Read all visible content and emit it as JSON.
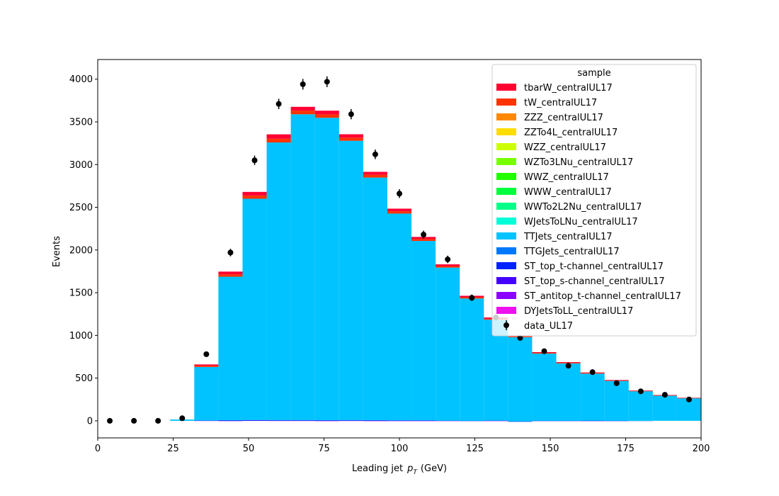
{
  "chart_data": {
    "type": "bar",
    "stacked": true,
    "xlabel": "Leading jet  p_T (GeV)",
    "xlabel_main": "Leading jet",
    "xlabel_symbol": "p",
    "xlabel_sub": "T",
    "xlabel_unit": "(GeV)",
    "ylabel": "Events",
    "xlim": [
      0,
      200
    ],
    "ylim": [
      -200,
      4230
    ],
    "xticks": [
      "0",
      "25",
      "50",
      "75",
      "100",
      "125",
      "150",
      "175",
      "200"
    ],
    "yticks": [
      "0",
      "500",
      "1000",
      "1500",
      "2000",
      "2500",
      "3000",
      "3500",
      "4000"
    ],
    "grid": false,
    "legend_title": "sample",
    "legend_position": "top-right",
    "bin_edges": [
      0,
      8,
      16,
      24,
      32,
      40,
      48,
      56,
      64,
      72,
      80,
      88,
      96,
      104,
      112,
      120,
      128,
      136,
      144,
      152,
      160,
      168,
      176,
      184,
      192,
      200
    ],
    "series": [
      {
        "name": "DYJetsToLL_centralUL17",
        "color": "#ee11ee",
        "values": [
          0,
          0,
          0,
          0,
          2,
          1,
          3,
          2,
          2,
          1,
          2,
          1,
          1,
          1,
          1,
          0,
          1,
          -5,
          0,
          0,
          0,
          0,
          0,
          0,
          0
        ]
      },
      {
        "name": "ST_antitop_t-channel_centralUL17",
        "color": "#8b00ff",
        "values": [
          0,
          0,
          0,
          0,
          1,
          1,
          1,
          1,
          1,
          1,
          1,
          1,
          1,
          1,
          0,
          0,
          1,
          -3,
          0,
          0,
          1,
          0,
          0,
          0,
          0
        ]
      },
      {
        "name": "ST_top_s-channel_centralUL17",
        "color": "#4400ff",
        "values": [
          0,
          0,
          0,
          0,
          0,
          1,
          1,
          1,
          1,
          1,
          1,
          1,
          1,
          1,
          0,
          0,
          0,
          0,
          0,
          0,
          0,
          0,
          0,
          0,
          0
        ]
      },
      {
        "name": "ST_top_t-channel_centralUL17",
        "color": "#0022ff",
        "values": [
          0,
          0,
          0,
          0,
          1,
          2,
          2,
          2,
          2,
          2,
          2,
          2,
          1,
          1,
          1,
          1,
          1,
          1,
          1,
          1,
          1,
          1,
          0,
          0,
          0
        ]
      },
      {
        "name": "TTGJets_centralUL17",
        "color": "#0077ff",
        "values": [
          0,
          0,
          0,
          0,
          1,
          2,
          3,
          3,
          3,
          3,
          3,
          3,
          2,
          2,
          2,
          1,
          1,
          1,
          1,
          1,
          1,
          1,
          1,
          0,
          0
        ]
      },
      {
        "name": "TTJets_centralUL17",
        "color": "#00c3ff",
        "values": [
          0,
          0,
          0,
          15,
          625,
          1680,
          2590,
          3250,
          3580,
          3540,
          3270,
          2840,
          2420,
          2100,
          1790,
          1430,
          1180,
          985,
          785,
          670,
          550,
          465,
          345,
          295,
          265
        ]
      },
      {
        "name": "WJetsToLNu_centralUL17",
        "color": "#00ffd9",
        "values": [
          0,
          0,
          0,
          0,
          0,
          0,
          0,
          0,
          0,
          0,
          0,
          0,
          0,
          0,
          0,
          0,
          0,
          0,
          0,
          0,
          0,
          0,
          0,
          0,
          0
        ]
      },
      {
        "name": "WWTo2L2Nu_centralUL17",
        "color": "#00ff88",
        "values": [
          0,
          0,
          0,
          0,
          0,
          0,
          0,
          0,
          0,
          0,
          0,
          0,
          0,
          0,
          0,
          0,
          0,
          0,
          0,
          0,
          0,
          0,
          0,
          0,
          0
        ]
      },
      {
        "name": "WWW_centralUL17",
        "color": "#00ff3c",
        "values": [
          0,
          0,
          0,
          0,
          0,
          0,
          0,
          0,
          0,
          0,
          0,
          0,
          0,
          0,
          0,
          0,
          0,
          0,
          0,
          0,
          0,
          0,
          0,
          0,
          0
        ]
      },
      {
        "name": "WWZ_centralUL17",
        "color": "#22ff00",
        "values": [
          0,
          0,
          0,
          0,
          0,
          0,
          0,
          0,
          0,
          0,
          0,
          0,
          0,
          0,
          0,
          0,
          0,
          0,
          0,
          0,
          0,
          0,
          0,
          0,
          0
        ]
      },
      {
        "name": "WZTo3LNu_centralUL17",
        "color": "#77ff00",
        "values": [
          0,
          0,
          0,
          0,
          0,
          0,
          0,
          0,
          0,
          0,
          0,
          0,
          0,
          0,
          0,
          0,
          0,
          0,
          0,
          0,
          0,
          0,
          0,
          0,
          0
        ]
      },
      {
        "name": "WZZ_centralUL17",
        "color": "#ccff00",
        "values": [
          0,
          0,
          0,
          0,
          0,
          0,
          0,
          0,
          0,
          0,
          0,
          0,
          0,
          0,
          0,
          0,
          0,
          0,
          0,
          0,
          0,
          0,
          0,
          0,
          0
        ]
      },
      {
        "name": "ZZTo4L_centralUL17",
        "color": "#ffdd00",
        "values": [
          0,
          0,
          0,
          0,
          0,
          0,
          0,
          0,
          0,
          0,
          0,
          0,
          0,
          0,
          0,
          0,
          0,
          0,
          0,
          0,
          0,
          0,
          0,
          0,
          0
        ]
      },
      {
        "name": "ZZZ_centralUL17",
        "color": "#ff8800",
        "values": [
          0,
          0,
          0,
          0,
          0,
          0,
          0,
          0,
          0,
          0,
          0,
          0,
          0,
          0,
          0,
          0,
          0,
          0,
          0,
          0,
          0,
          0,
          0,
          0,
          0
        ]
      },
      {
        "name": "tW_centralUL17",
        "color": "#ff3300",
        "values": [
          0,
          0,
          0,
          0,
          14,
          28,
          38,
          45,
          42,
          40,
          36,
          32,
          28,
          22,
          18,
          15,
          12,
          10,
          8,
          7,
          6,
          5,
          4,
          3,
          2
        ]
      },
      {
        "name": "tbarW_centralUL17",
        "color": "#ff0033",
        "values": [
          0,
          0,
          0,
          0,
          16,
          32,
          42,
          50,
          45,
          43,
          40,
          35,
          30,
          25,
          20,
          17,
          14,
          11,
          9,
          8,
          7,
          6,
          5,
          4,
          3
        ]
      }
    ],
    "data": {
      "name": "data_UL17",
      "color": "#000000",
      "x": [
        4,
        12,
        20,
        28,
        36,
        44,
        52,
        60,
        68,
        76,
        84,
        92,
        100,
        108,
        116,
        124,
        132,
        140,
        148,
        156,
        164,
        172,
        180,
        188,
        196
      ],
      "y": [
        0,
        0,
        0,
        30,
        780,
        1970,
        3050,
        3710,
        3940,
        3970,
        3590,
        3120,
        2660,
        2180,
        1890,
        1440,
        1210,
        970,
        815,
        645,
        570,
        440,
        345,
        305,
        250
      ]
    }
  }
}
